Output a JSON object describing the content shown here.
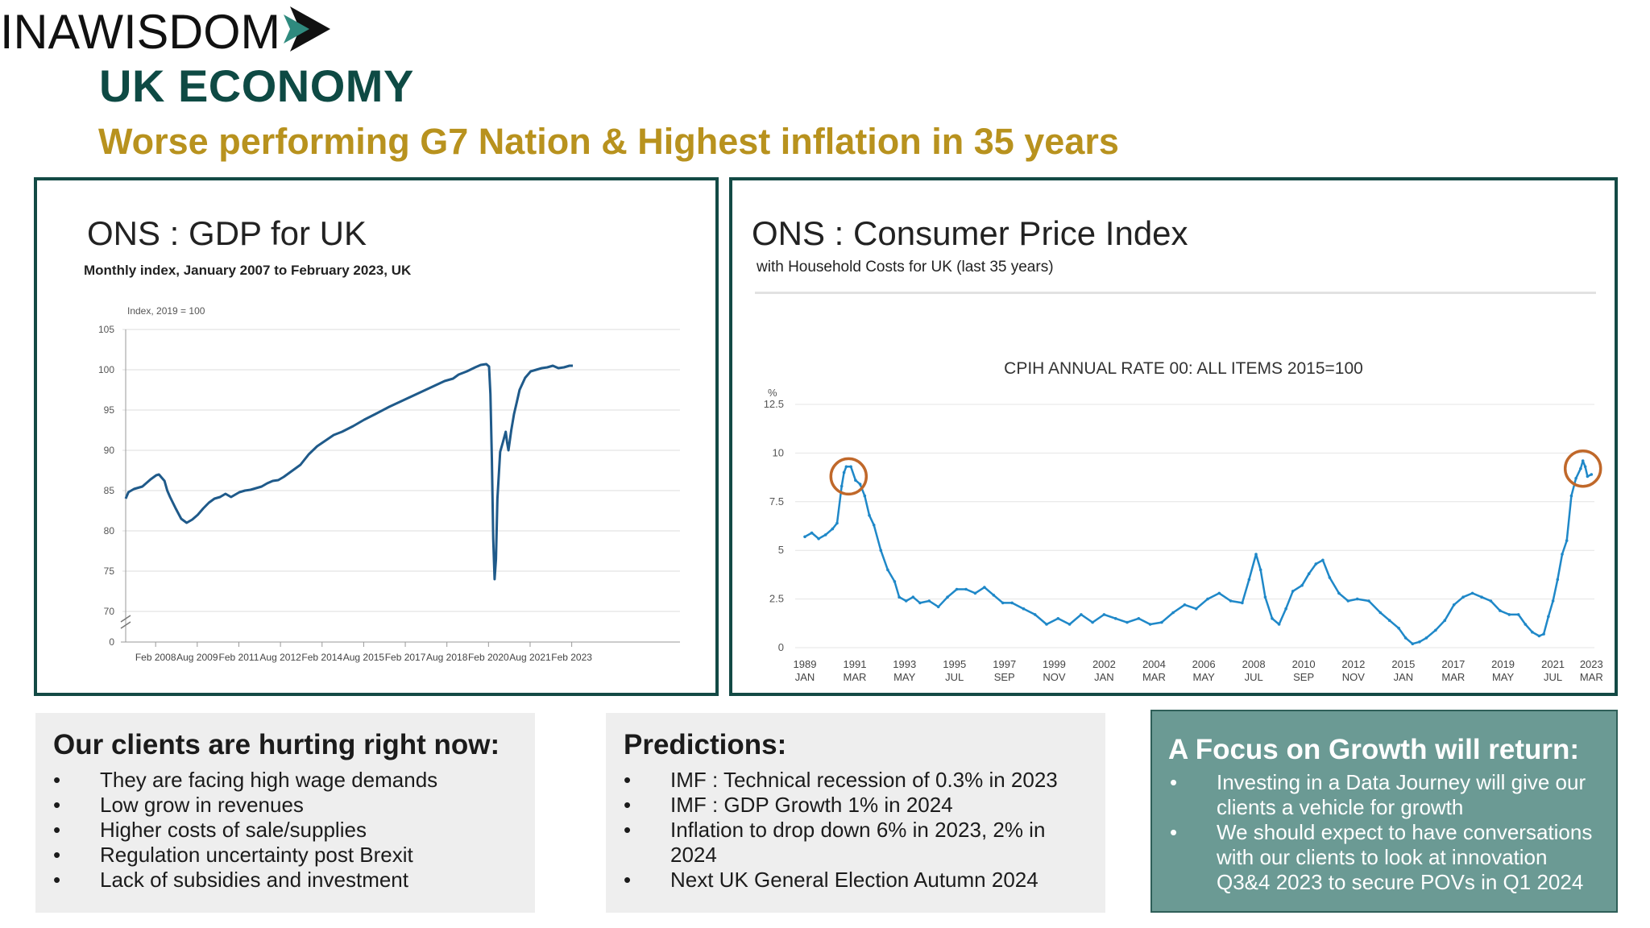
{
  "header": {
    "title": "UK ECONOMY",
    "subtitle": "Worse performing G7 Nation & Highest inflation in 35 years",
    "logo_text": "INAWISDOM"
  },
  "gdp_panel": {
    "heading": "ONS : GDP for UK",
    "chart_subtitle": "Monthly index, January 2007 to February 2023, UK"
  },
  "cpi_panel": {
    "heading": "ONS : Consumer Price Index",
    "chart_subtitle": "with Household Costs for UK (last 35 years)"
  },
  "chart_data": [
    {
      "type": "line",
      "title": "Monthly index, January 2007 to February 2023, UK",
      "ylabel": "Index, 2019 = 100",
      "ylim": [
        0,
        105
      ],
      "y_axis_break": true,
      "yticks": [
        0,
        70,
        75,
        80,
        85,
        90,
        95,
        100,
        105
      ],
      "xlim": [
        2007.0,
        2023.12
      ],
      "xticks": [
        {
          "label": "Feb 2008",
          "x": 2008.08
        },
        {
          "label": "Aug 2009",
          "x": 2009.58
        },
        {
          "label": "Feb 2011",
          "x": 2011.08
        },
        {
          "label": "Aug 2012",
          "x": 2012.58
        },
        {
          "label": "Feb 2014",
          "x": 2014.08
        },
        {
          "label": "Aug 2015",
          "x": 2015.58
        },
        {
          "label": "Feb 2017",
          "x": 2017.08
        },
        {
          "label": "Aug 2018",
          "x": 2018.58
        },
        {
          "label": "Feb 2020",
          "x": 2020.08
        },
        {
          "label": "Aug 2021",
          "x": 2021.58
        },
        {
          "label": "Feb 2023",
          "x": 2023.08
        }
      ],
      "grid": true,
      "color": "#1f5a8a",
      "series": [
        {
          "x": [
            2007.0,
            2007.1,
            2007.3,
            2007.6,
            2007.9,
            2008.1,
            2008.2,
            2008.4,
            2008.5,
            2008.6,
            2008.8,
            2009.0,
            2009.2,
            2009.4,
            2009.5,
            2009.6,
            2009.8,
            2010.0,
            2010.2,
            2010.4,
            2010.6,
            2010.8,
            2011.0,
            2011.1,
            2011.3,
            2011.5,
            2011.7,
            2011.9,
            2012.1,
            2012.3,
            2012.5,
            2012.7,
            2012.9,
            2013.1,
            2013.3,
            2013.6,
            2013.9,
            2014.2,
            2014.5,
            2014.8,
            2015.2,
            2015.6,
            2016.0,
            2016.5,
            2017.0,
            2017.5,
            2018.0,
            2018.5,
            2018.8,
            2019.0,
            2019.3,
            2019.6,
            2019.8,
            2020.0,
            2020.1,
            2020.15,
            2020.2,
            2020.25,
            2020.3,
            2020.35,
            2020.4,
            2020.5,
            2020.6,
            2020.7,
            2020.75,
            2020.8,
            2020.9,
            2021.0,
            2021.1,
            2021.2,
            2021.4,
            2021.6,
            2021.8,
            2022.0,
            2022.2,
            2022.4,
            2022.6,
            2022.8,
            2023.0,
            2023.12
          ],
          "y": [
            84.0,
            84.8,
            85.2,
            85.5,
            86.4,
            86.9,
            87.0,
            86.2,
            85.0,
            84.2,
            82.8,
            81.5,
            81.0,
            81.4,
            81.7,
            82.0,
            82.8,
            83.5,
            84.0,
            84.2,
            84.6,
            84.2,
            84.6,
            84.8,
            85.0,
            85.1,
            85.3,
            85.5,
            85.9,
            86.2,
            86.3,
            86.7,
            87.2,
            87.7,
            88.2,
            89.5,
            90.5,
            91.2,
            91.9,
            92.3,
            93.0,
            93.8,
            94.5,
            95.4,
            96.2,
            97.0,
            97.8,
            98.6,
            98.9,
            99.4,
            99.8,
            100.3,
            100.6,
            100.7,
            100.4,
            97.0,
            89.0,
            79.0,
            74.0,
            76.5,
            84.0,
            89.8,
            91.0,
            92.3,
            91.0,
            90.0,
            92.5,
            94.5,
            96.0,
            97.5,
            99.0,
            99.8,
            100.0,
            100.2,
            100.3,
            100.5,
            100.2,
            100.3,
            100.5,
            100.5
          ]
        }
      ]
    },
    {
      "type": "line",
      "title": "CPIH ANNUAL RATE 00: ALL ITEMS 2015=100",
      "ylabel": "%",
      "ylim": [
        0,
        12.5
      ],
      "yticks": [
        0,
        2.5,
        5,
        7.5,
        10,
        12.5
      ],
      "xlim": [
        1989.0,
        2023.3
      ],
      "xticks": [
        {
          "label": "1989",
          "sub": "JAN",
          "x": 1989.0
        },
        {
          "label": "1991",
          "sub": "MAR",
          "x": 1991.17
        },
        {
          "label": "1993",
          "sub": "MAY",
          "x": 1993.33
        },
        {
          "label": "1995",
          "sub": "JUL",
          "x": 1995.5
        },
        {
          "label": "1997",
          "sub": "SEP",
          "x": 1997.67
        },
        {
          "label": "1999",
          "sub": "NOV",
          "x": 1999.83
        },
        {
          "label": "2002",
          "sub": "JAN",
          "x": 2002.0
        },
        {
          "label": "2004",
          "sub": "MAR",
          "x": 2004.17
        },
        {
          "label": "2006",
          "sub": "MAY",
          "x": 2006.33
        },
        {
          "label": "2008",
          "sub": "JUL",
          "x": 2008.5
        },
        {
          "label": "2010",
          "sub": "SEP",
          "x": 2010.67
        },
        {
          "label": "2012",
          "sub": "NOV",
          "x": 2012.83
        },
        {
          "label": "2015",
          "sub": "JAN",
          "x": 2015.0
        },
        {
          "label": "2017",
          "sub": "MAR",
          "x": 2017.17
        },
        {
          "label": "2019",
          "sub": "MAY",
          "x": 2019.33
        },
        {
          "label": "2021",
          "sub": "JUL",
          "x": 2021.5
        },
        {
          "label": "2023",
          "sub": "MAR",
          "x": 2023.17
        }
      ],
      "grid": true,
      "legend": "bottom",
      "highlight_circles": [
        {
          "x": 1990.9,
          "y": 8.8
        },
        {
          "x": 2022.8,
          "y": 9.2
        }
      ],
      "color": "#1f88c8",
      "series": [
        {
          "name": "CPIH ANNUAL RATE 00: ALL ITEMS 2015=100",
          "x": [
            1989.0,
            1989.3,
            1989.6,
            1989.9,
            1990.2,
            1990.4,
            1990.6,
            1990.7,
            1990.8,
            1991.0,
            1991.2,
            1991.4,
            1991.6,
            1991.8,
            1992.0,
            1992.3,
            1992.6,
            1992.9,
            1993.1,
            1993.4,
            1993.7,
            1994.0,
            1994.4,
            1994.8,
            1995.2,
            1995.6,
            1996.0,
            1996.4,
            1996.8,
            1997.2,
            1997.6,
            1998.0,
            1998.5,
            1999.0,
            1999.5,
            2000.0,
            2000.5,
            2001.0,
            2001.5,
            2002.0,
            2002.5,
            2003.0,
            2003.5,
            2004.0,
            2004.5,
            2005.0,
            2005.5,
            2006.0,
            2006.5,
            2007.0,
            2007.5,
            2008.0,
            2008.3,
            2008.6,
            2008.8,
            2009.0,
            2009.3,
            2009.6,
            2009.9,
            2010.2,
            2010.6,
            2010.9,
            2011.2,
            2011.5,
            2011.8,
            2012.2,
            2012.6,
            2013.0,
            2013.5,
            2014.0,
            2014.4,
            2014.8,
            2015.1,
            2015.4,
            2015.7,
            2016.0,
            2016.4,
            2016.8,
            2017.2,
            2017.6,
            2018.0,
            2018.4,
            2018.8,
            2019.2,
            2019.6,
            2020.0,
            2020.3,
            2020.6,
            2020.9,
            2021.1,
            2021.3,
            2021.5,
            2021.7,
            2021.9,
            2022.1,
            2022.3,
            2022.5,
            2022.7,
            2022.8,
            2022.9,
            2023.0,
            2023.17
          ],
          "y": [
            5.7,
            5.9,
            5.6,
            5.8,
            6.1,
            6.4,
            8.3,
            9.0,
            9.3,
            9.3,
            8.6,
            8.4,
            7.8,
            6.8,
            6.3,
            5.0,
            4.0,
            3.4,
            2.6,
            2.4,
            2.6,
            2.3,
            2.4,
            2.1,
            2.6,
            3.0,
            3.0,
            2.8,
            3.1,
            2.7,
            2.3,
            2.3,
            2.0,
            1.7,
            1.2,
            1.5,
            1.2,
            1.7,
            1.3,
            1.7,
            1.5,
            1.3,
            1.5,
            1.2,
            1.3,
            1.8,
            2.2,
            2.0,
            2.5,
            2.8,
            2.4,
            2.3,
            3.5,
            4.8,
            4.0,
            2.6,
            1.5,
            1.2,
            2.0,
            2.9,
            3.2,
            3.8,
            4.3,
            4.5,
            3.6,
            2.8,
            2.4,
            2.5,
            2.4,
            1.8,
            1.4,
            1.0,
            0.5,
            0.2,
            0.3,
            0.5,
            0.9,
            1.4,
            2.2,
            2.6,
            2.8,
            2.6,
            2.4,
            1.9,
            1.7,
            1.7,
            1.2,
            0.8,
            0.6,
            0.7,
            1.6,
            2.4,
            3.5,
            4.8,
            5.5,
            7.8,
            8.7,
            9.2,
            9.6,
            9.3,
            8.8,
            8.9
          ]
        }
      ]
    }
  ],
  "info_boxes": {
    "clients": {
      "heading": "Our clients are hurting right now:",
      "items": [
        "They are facing high wage demands",
        "Low grow in revenues",
        "Higher costs of sale/supplies",
        "Regulation uncertainty post Brexit",
        "Lack of subsidies and investment"
      ]
    },
    "predictions": {
      "heading": "Predictions:",
      "items": [
        "IMF : Technical recession of 0.3% in 2023",
        "IMF : GDP Growth 1% in 2024",
        "Inflation to drop down 6% in 2023, 2% in 2024",
        "Next UK General Election Autumn 2024"
      ]
    },
    "growth": {
      "heading": "A Focus on Growth will return:",
      "items": [
        "Investing in a Data Journey will give our clients a vehicle for growth",
        "We should expect to have conversations with our clients to look at innovation Q3&4 2023 to secure POVs in Q1 2024"
      ]
    },
    "bullet": "•"
  }
}
